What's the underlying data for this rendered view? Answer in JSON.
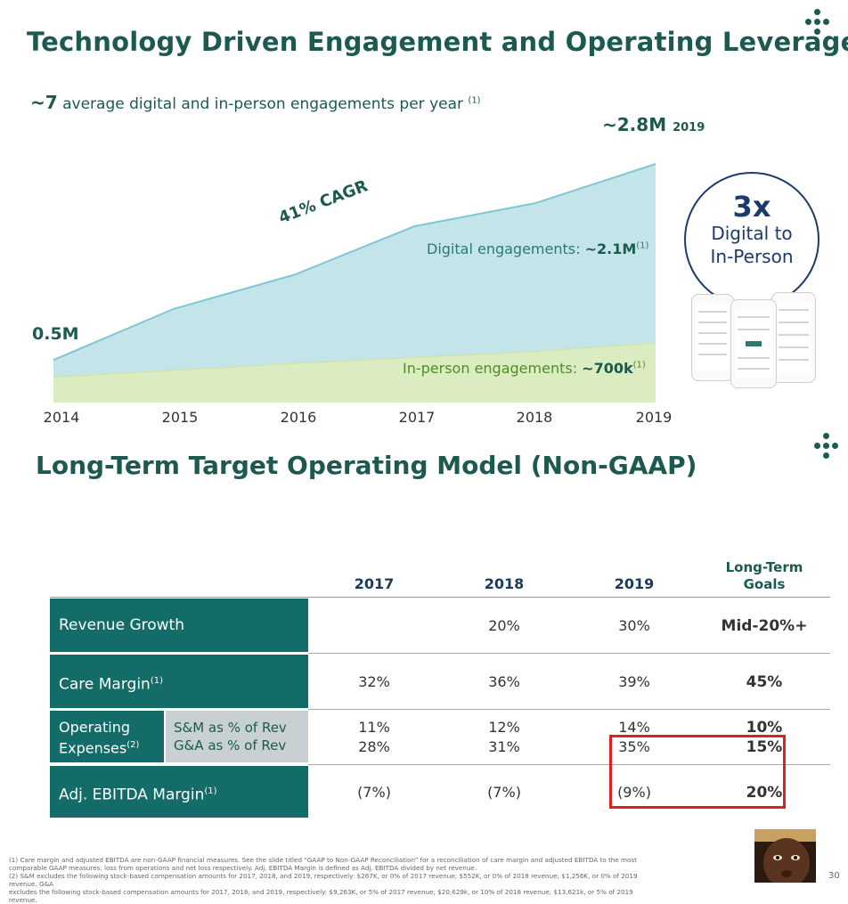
{
  "slide": {
    "title": "Technology Driven Engagement and Operating Leverage",
    "subtitle_bold": "~7",
    "subtitle_text": "average digital and in-person engagements per year",
    "subtitle_sup": "(1)",
    "page_number": "30"
  },
  "chart_data": {
    "type": "area",
    "title": "",
    "x": [
      "2014",
      "2015",
      "2016",
      "2017",
      "2018",
      "2019"
    ],
    "series": [
      {
        "name": "In-person engagements",
        "values": [
          0.3,
          0.38,
          0.46,
          0.53,
          0.6,
          0.7
        ],
        "color": "#dcecc1"
      },
      {
        "name": "Digital engagements",
        "values": [
          0.2,
          0.72,
          1.04,
          1.54,
          1.74,
          2.1
        ],
        "color": "#c3e5ea"
      }
    ],
    "ylim": [
      0,
      3.0
    ],
    "start_label": "0.5M",
    "end_label": "~2.8M",
    "end_label_year": "2019",
    "cagr_label": "41% CAGR",
    "digital_label": "Digital engagements: ",
    "digital_value": "~2.1M",
    "digital_sup": "(1)",
    "inperson_label": "In-person engagements: ",
    "inperson_value": "~700k",
    "inperson_sup": "(1)",
    "line_color": "#7ec6d3",
    "digital_fill": "#c3e5ea",
    "inperson_fill": "#dcecc1",
    "inperson_line": "#cfe3b0"
  },
  "callout": {
    "big": "3x",
    "line1": "Digital to",
    "line2": "In-Person"
  },
  "table": {
    "title": "Long-Term Target Operating Model (Non-GAAP)",
    "headers": [
      "2017",
      "2018",
      "2019"
    ],
    "goal_header_line1": "Long-Term",
    "goal_header_line2": "Goals",
    "rows": {
      "revenue": {
        "label": "Revenue Growth",
        "values": [
          "",
          "20%",
          "30%"
        ],
        "goal": "Mid-20%+"
      },
      "care": {
        "label": "Care Margin",
        "sup": "(1)",
        "values": [
          "32%",
          "36%",
          "39%"
        ],
        "goal": "45%"
      },
      "opex": {
        "label_line1": "Operating",
        "label_line2": "Expenses",
        "sup": "(2)",
        "sub1": "S&M as % of Rev",
        "sub2": "G&A as % of Rev",
        "sm_values": [
          "11%",
          "12%",
          "14%"
        ],
        "sm_goal": "10%",
        "ga_values": [
          "28%",
          "31%",
          "35%"
        ],
        "ga_goal": "15%"
      },
      "ebitda": {
        "label": "Adj. EBITDA Margin",
        "sup": "(1)",
        "values": [
          "(7%)",
          "(7%)",
          "(9%)"
        ],
        "goal": "20%"
      }
    }
  },
  "footnotes": {
    "line1": "(1) Care margin and adjusted EBITDA are non-GAAP financial measures.  See the slide titled “GAAP to Non-GAAP Reconciliation” for a reconciliation of care margin and adjusted EBITDA to the most",
    "line2": "comparable GAAP measures: loss from operations and net loss respectively. Adj. EBITDA Margin is defined as Adj. EBITDA divided by net revenue.",
    "line3": "(2) S&M excludes the following stock-based compensation amounts for 2017, 2018, and 2019, respectively:  $267K, or 0% of 2017 revenue; $552K, or 0% of 2018 revenue; $1,256K, or 0% of 2019 revenue. G&A",
    "line4": "excludes the following stock-based compensation amounts for 2017, 2018, and 2019, respectively:  $9,263K, or 5% of 2017 revenue; $20,629k, or 10% of 2018 revenue; $13,621k, or 5% of 2019 revenue."
  },
  "colors": {
    "brand": "#1c5a50",
    "table_header_bg": "#136c68",
    "table_subcell_bg": "#c9d0d2",
    "highlight_box": "#e02020",
    "callout_border": "#1c3a6a"
  }
}
